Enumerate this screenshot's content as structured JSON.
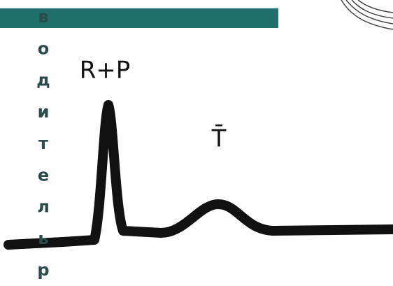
{
  "vertical_text": [
    "в",
    "о",
    "д",
    "и",
    "т",
    "е",
    "л",
    "ь",
    "р"
  ],
  "labels": [
    "R+P",
    "T̄"
  ]
}
